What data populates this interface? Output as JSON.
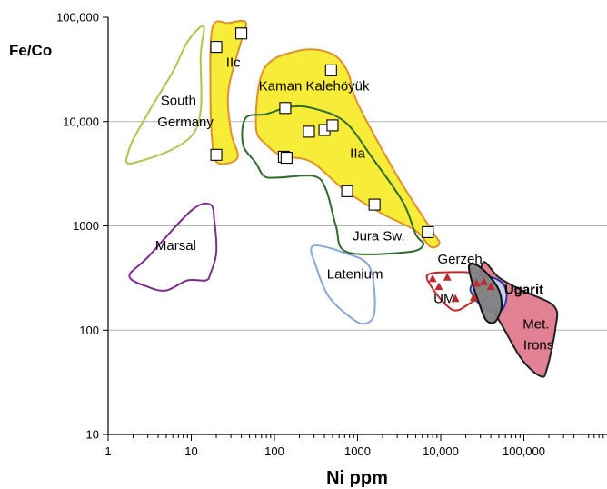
{
  "chart_data": {
    "type": "scatter",
    "title": "",
    "xlabel": "Ni ppm",
    "ylabel": "Fe/Co",
    "x_scale": "log",
    "y_scale": "log",
    "xlim": [
      1,
      900000
    ],
    "ylim": [
      10,
      100000
    ],
    "x_ticks": [
      {
        "v": 1,
        "label": "1"
      },
      {
        "v": 10,
        "label": "10"
      },
      {
        "v": 100,
        "label": "100"
      },
      {
        "v": 1000,
        "label": "1000"
      },
      {
        "v": 10000,
        "label": "10,000"
      },
      {
        "v": 100000,
        "label": "100,000"
      }
    ],
    "y_ticks": [
      {
        "v": 10,
        "label": "10"
      },
      {
        "v": 100,
        "label": "100"
      },
      {
        "v": 1000,
        "label": "1000"
      },
      {
        "v": 10000,
        "label": "10,000"
      },
      {
        "v": 100000,
        "label": "100,000"
      }
    ],
    "grid": "horizontal",
    "series": [
      {
        "name": "Kaman Kalehöyük",
        "marker": "open-square",
        "color": "#000000",
        "points": [
          [
            20,
            52000
          ],
          [
            40,
            70000
          ],
          [
            20,
            4800
          ],
          [
            135,
            13500
          ],
          [
            130,
            4600
          ],
          [
            140,
            4500
          ],
          [
            260,
            8000
          ],
          [
            400,
            8300
          ],
          [
            500,
            9200
          ],
          [
            480,
            31000
          ],
          [
            750,
            2150
          ],
          [
            1600,
            1600
          ],
          [
            7000,
            870
          ]
        ]
      },
      {
        "name": "UM",
        "marker": "filled-triangle",
        "color": "#c0282d",
        "points": [
          [
            8000,
            310
          ],
          [
            12000,
            320
          ],
          [
            9500,
            260
          ],
          [
            15000,
            200
          ],
          [
            25000,
            205
          ],
          [
            27000,
            280
          ],
          [
            33000,
            290
          ],
          [
            40000,
            260
          ]
        ]
      }
    ],
    "regions": [
      {
        "label": "IIc",
        "fill": "#f7ec2e",
        "stroke": "#e0902a",
        "outline": [
          [
            18,
            80000
          ],
          [
            28,
            88000
          ],
          [
            45,
            90000
          ],
          [
            40,
            60000
          ],
          [
            28,
            20000
          ],
          [
            30,
            8000
          ],
          [
            36,
            4500
          ],
          [
            21,
            4000
          ],
          [
            18,
            6000
          ],
          [
            17,
            20000
          ]
        ]
      },
      {
        "label": "IIa",
        "fill": "#f7ec2e",
        "stroke": "#e0902a",
        "outline": [
          [
            75,
            32000
          ],
          [
            200,
            48000
          ],
          [
            480,
            45000
          ],
          [
            760,
            30000
          ],
          [
            1000,
            15000
          ],
          [
            3000,
            3000
          ],
          [
            8000,
            880
          ],
          [
            9600,
            680
          ],
          [
            7500,
            630
          ],
          [
            5000,
            900
          ],
          [
            2000,
            1300
          ],
          [
            700,
            2200
          ],
          [
            280,
            4100
          ],
          [
            125,
            4700
          ],
          [
            80,
            6000
          ],
          [
            60,
            9000
          ]
        ]
      },
      {
        "label": "Jura Sw.",
        "fill": "none",
        "stroke": "#2f6b2f",
        "outline": [
          [
            45,
            10800
          ],
          [
            80,
            11800
          ],
          [
            150,
            13800
          ],
          [
            280,
            13500
          ],
          [
            700,
            10000
          ],
          [
            1500,
            4500
          ],
          [
            3500,
            1700
          ],
          [
            5000,
            830
          ],
          [
            6200,
            660
          ],
          [
            4000,
            560
          ],
          [
            750,
            560
          ],
          [
            550,
            1000
          ],
          [
            420,
            2200
          ],
          [
            300,
            3000
          ],
          [
            110,
            2900
          ],
          [
            75,
            3000
          ],
          [
            60,
            4000
          ],
          [
            42,
            6000
          ]
        ]
      },
      {
        "label": "South Germany",
        "fill": "none",
        "stroke": "#a8c84a",
        "outline": [
          [
            9,
            58000
          ],
          [
            14,
            82000
          ],
          [
            13,
            45000
          ],
          [
            11,
            8000
          ],
          [
            2,
            4000
          ],
          [
            1.8,
            5500
          ],
          [
            3,
            12000
          ],
          [
            6,
            30000
          ]
        ]
      },
      {
        "label": "Marsal",
        "fill": "none",
        "stroke": "#7a2e8c",
        "outline": [
          [
            1.8,
            330
          ],
          [
            3,
            500
          ],
          [
            10,
            1400
          ],
          [
            17,
            1600
          ],
          [
            19,
            1100
          ],
          [
            20,
            550
          ],
          [
            17,
            350
          ],
          [
            15,
            300
          ],
          [
            9,
            300
          ],
          [
            5,
            240
          ],
          [
            3,
            260
          ]
        ]
      },
      {
        "label": "Latenium",
        "fill": "none",
        "stroke": "#8aa6d6",
        "outline": [
          [
            290,
            640
          ],
          [
            700,
            550
          ],
          [
            1400,
            400
          ],
          [
            1600,
            150
          ],
          [
            1200,
            115
          ],
          [
            800,
            135
          ],
          [
            450,
            210
          ],
          [
            320,
            400
          ]
        ]
      },
      {
        "label": "UM",
        "fill": "none",
        "stroke": "#c0282d",
        "outline": [
          [
            7000,
            340
          ],
          [
            14000,
            360
          ],
          [
            27000,
            350
          ],
          [
            42000,
            300
          ],
          [
            35000,
            200
          ],
          [
            25000,
            190
          ],
          [
            16000,
            155
          ],
          [
            12000,
            170
          ],
          [
            8000,
            250
          ]
        ]
      },
      {
        "label": "Met. Irons",
        "fill": "#e07a8e",
        "stroke": "#222222",
        "outline": [
          [
            33000,
            450
          ],
          [
            50000,
            320
          ],
          [
            95000,
            240
          ],
          [
            230000,
            170
          ],
          [
            240000,
            105
          ],
          [
            190000,
            43
          ],
          [
            160000,
            36
          ],
          [
            95000,
            52
          ],
          [
            55000,
            110
          ],
          [
            38000,
            180
          ],
          [
            30000,
            280
          ]
        ]
      },
      {
        "label": "Ugarit",
        "fill": "#c6d2f0",
        "stroke": "#2b3ea0",
        "outline": [
          [
            30000,
            330
          ],
          [
            50000,
            300
          ],
          [
            62000,
            230
          ],
          [
            56000,
            160
          ],
          [
            42000,
            150
          ],
          [
            30000,
            175
          ],
          [
            24000,
            220
          ],
          [
            23000,
            260
          ]
        ]
      },
      {
        "label": "Gerzeh",
        "fill": "#808080",
        "stroke": "#111111",
        "outline": [
          [
            22000,
            420
          ],
          [
            30000,
            400
          ],
          [
            48000,
            260
          ],
          [
            54000,
            170
          ],
          [
            45000,
            120
          ],
          [
            35000,
            125
          ],
          [
            29000,
            180
          ],
          [
            24000,
            280
          ]
        ]
      }
    ],
    "annotations": [
      {
        "text": "IIc",
        "x": 32,
        "y": 37000,
        "color": "#000000",
        "bold": false
      },
      {
        "text": "Kaman Kalehöyük",
        "x": 300,
        "y": 22000,
        "color": "#000000",
        "bold": false
      },
      {
        "text": "South",
        "x": 7,
        "y": 16000,
        "color": "#000000",
        "bold": false
      },
      {
        "text": "Germany",
        "x": 8.5,
        "y": 10000,
        "color": "#000000",
        "bold": false
      },
      {
        "text": "IIa",
        "x": 1000,
        "y": 5000,
        "color": "#000000",
        "bold": false
      },
      {
        "text": "Jura Sw.",
        "x": 1800,
        "y": 800,
        "color": "#000000",
        "bold": false
      },
      {
        "text": "Marsal",
        "x": 6.5,
        "y": 650,
        "color": "#000000",
        "bold": false
      },
      {
        "text": "Latenium",
        "x": 930,
        "y": 345,
        "color": "#000000",
        "bold": false
      },
      {
        "text": "Gerzeh",
        "x": 17000,
        "y": 480,
        "color": "#000000",
        "bold": false
      },
      {
        "text": "UM",
        "x": 11000,
        "y": 200,
        "color": "#c0282d",
        "bold": false
      },
      {
        "text": "Ugarit",
        "x": 100000,
        "y": 245,
        "color": "#2b3ea0",
        "bold": true
      },
      {
        "text": "Met.",
        "x": 140000,
        "y": 115,
        "color": "#000000",
        "bold": false
      },
      {
        "text": "Irons",
        "x": 150000,
        "y": 72,
        "color": "#000000",
        "bold": false
      }
    ]
  }
}
